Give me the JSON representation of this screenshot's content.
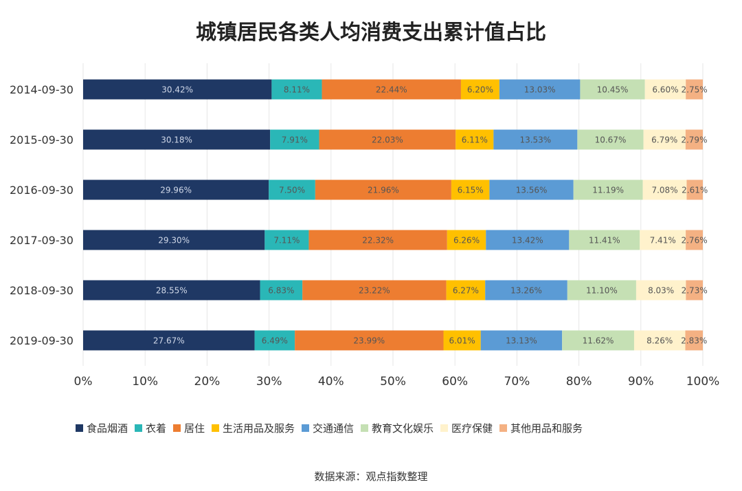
{
  "chart_data": {
    "type": "bar",
    "orientation": "horizontal",
    "stacked": true,
    "normalized_percent": true,
    "title": "城镇居民各类人均消费支出累计值占比",
    "categories": [
      "2014-09-30",
      "2015-09-30",
      "2016-09-30",
      "2017-09-30",
      "2018-09-30",
      "2019-09-30"
    ],
    "series": [
      {
        "name": "食品烟酒",
        "color": "#1f3864",
        "values": [
          30.42,
          30.18,
          29.96,
          29.3,
          28.55,
          27.67
        ],
        "labels": [
          "30.42%",
          "30.18%",
          "29.96%",
          "29.30%",
          "28.55%",
          "27.67%"
        ]
      },
      {
        "name": "衣着",
        "color": "#2ab7b7",
        "values": [
          8.11,
          7.91,
          7.5,
          7.11,
          6.83,
          6.49
        ],
        "labels": [
          "8.11%",
          "7.91%",
          "7.50%",
          "7.11%",
          "6.83%",
          "6.49%"
        ]
      },
      {
        "name": "居住",
        "color": "#ed7d31",
        "values": [
          22.44,
          22.03,
          21.96,
          22.32,
          23.22,
          23.99
        ],
        "labels": [
          "22.44%",
          "22.03%",
          "21.96%",
          "22.32%",
          "23.22%",
          "23.99%"
        ]
      },
      {
        "name": "生活用品及服务",
        "color": "#ffc000",
        "values": [
          6.2,
          6.11,
          6.15,
          6.26,
          6.27,
          6.01
        ],
        "labels": [
          "6.20%",
          "6.11%",
          "6.15%",
          "6.26%",
          "6.27%",
          "6.01%"
        ]
      },
      {
        "name": "交通通信",
        "color": "#5b9bd5",
        "values": [
          13.03,
          13.53,
          13.56,
          13.42,
          13.26,
          13.13
        ],
        "labels": [
          "13.03%",
          "13.53%",
          "13.56%",
          "13.42%",
          "13.26%",
          "13.13%"
        ]
      },
      {
        "name": "教育文化娱乐",
        "color": "#c5e0b4",
        "values": [
          10.45,
          10.67,
          11.19,
          11.41,
          11.1,
          11.62
        ],
        "labels": [
          "10.45%",
          "10.67%",
          "11.19%",
          "11.41%",
          "11.10%",
          "11.62%"
        ]
      },
      {
        "name": "医疗保健",
        "color": "#fff2cc",
        "values": [
          6.6,
          6.79,
          7.08,
          7.41,
          8.03,
          8.26
        ],
        "labels": [
          "6.60%",
          "6.79%",
          "7.08%",
          "7.41%",
          "8.03%",
          "8.26%"
        ]
      },
      {
        "name": "其他用品和服务",
        "color": "#f4b183",
        "values": [
          2.75,
          2.79,
          2.61,
          2.76,
          2.73,
          2.83
        ],
        "labels": [
          "2.75%",
          "2.79%",
          "2.61%",
          "2.76%",
          "2.73%",
          "2.83%"
        ]
      }
    ],
    "xlim": [
      0,
      100
    ],
    "xticks": [
      "0%",
      "10%",
      "20%",
      "30%",
      "40%",
      "50%",
      "60%",
      "70%",
      "80%",
      "90%",
      "100%"
    ],
    "grid": true,
    "legend_position": "bottom"
  },
  "footer": {
    "source": "数据来源：观点指数整理"
  }
}
